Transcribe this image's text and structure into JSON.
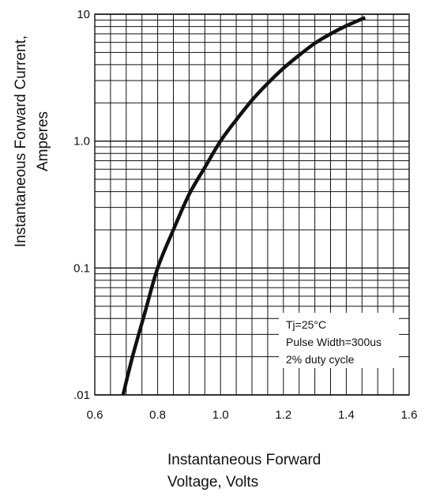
{
  "chart_data": {
    "type": "line",
    "title": "",
    "xlabel": [
      "Instantaneous Forward",
      "Voltage, Volts"
    ],
    "ylabel": [
      "Instantaneous Forward Current,",
      "Amperes"
    ],
    "x_scale": "linear",
    "y_scale": "log",
    "xlim": [
      0.6,
      1.6
    ],
    "ylim": [
      0.01,
      10
    ],
    "x_ticks": [
      "0.6",
      "0.8",
      "1.0",
      "1.2",
      "1.4",
      "1.6"
    ],
    "y_ticks": [
      ".01",
      "0.1",
      "1.0",
      "10"
    ],
    "grid": true,
    "series": [
      {
        "x": [
          0.69,
          0.72,
          0.76,
          0.8,
          0.85,
          0.9,
          0.95,
          1.0,
          1.05,
          1.1,
          1.15,
          1.2,
          1.25,
          1.3,
          1.35,
          1.4,
          1.46
        ],
        "y": [
          0.01,
          0.02,
          0.045,
          0.1,
          0.2,
          0.38,
          0.62,
          1.0,
          1.47,
          2.1,
          2.85,
          3.75,
          4.75,
          5.9,
          7.0,
          8.1,
          9.4
        ]
      }
    ],
    "annotations": [
      "Tj=25°C",
      "Pulse Width=300us",
      "2% duty cycle"
    ]
  }
}
